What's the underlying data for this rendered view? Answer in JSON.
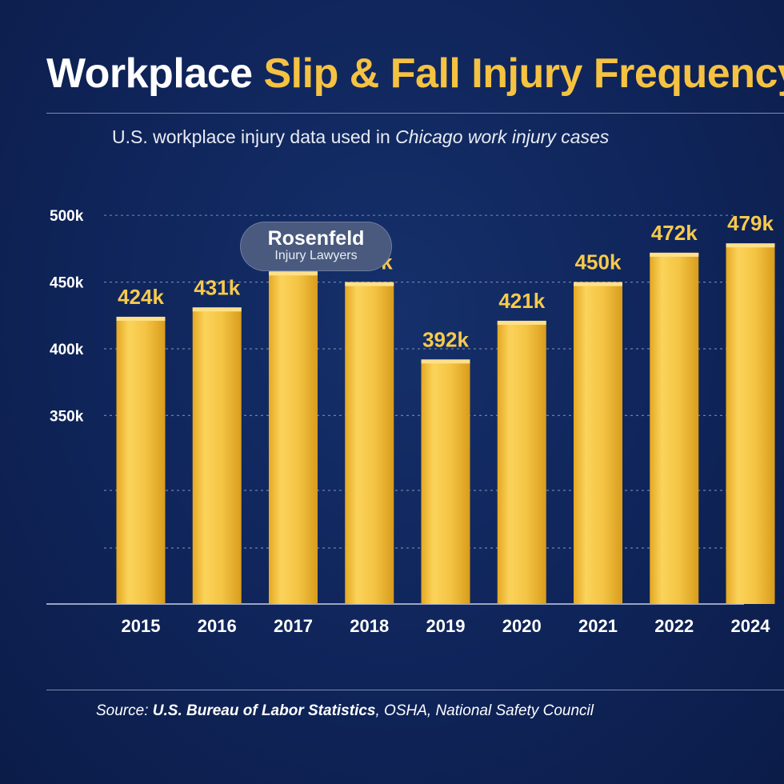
{
  "header": {
    "title_white": "Workplace",
    "title_yellow": "Slip & Fall Injury Frequency",
    "subtitle_prefix": "U.S. workplace injury data used in ",
    "subtitle_italic": "Chicago work injury cases"
  },
  "logo": {
    "line1": "Rosenfeld",
    "line2": "Injury Lawyers"
  },
  "footer": {
    "source_prefix": "Source:",
    "source_bold": "U.S. Bureau of Labor Statistics",
    "source_rest": ", OSHA, National Safety Council"
  },
  "colors": {
    "background": "#0f2459",
    "bar": "#f5c242",
    "label": "#f7ca4d"
  },
  "chart_data": {
    "type": "bar",
    "title": "Workplace Slip & Fall Injury Frequency",
    "subtitle": "U.S. workplace injury data used in Chicago work injury cases",
    "categories": [
      "2015",
      "2016",
      "2017",
      "2018",
      "2019",
      "2020",
      "2021",
      "2022",
      "2024"
    ],
    "values": [
      424,
      431,
      458,
      450,
      392,
      421,
      450,
      472,
      479
    ],
    "value_labels": [
      "424k",
      "431k",
      "458k",
      "450k",
      "392k",
      "421k",
      "450k",
      "472k",
      "479k"
    ],
    "yticks": [
      "350k",
      "400k",
      "450k",
      "500k"
    ],
    "xlabel": "",
    "ylabel": "",
    "grid": true,
    "legend": "none"
  }
}
